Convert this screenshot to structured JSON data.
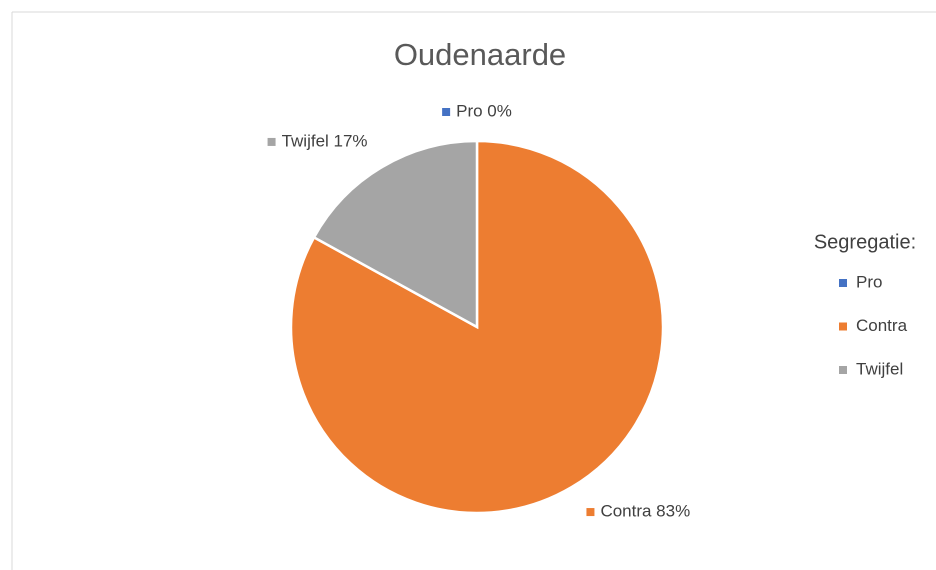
{
  "chart_data": {
    "type": "pie",
    "title": "Oudenaarde",
    "categories": [
      "Pro",
      "Contra",
      "Twijfel"
    ],
    "values": [
      0,
      83,
      17
    ],
    "value_labels": [
      "Pro 0%",
      "Contra 83%",
      "Twijfel 17%"
    ],
    "colors": [
      "#4472c4",
      "#ed7d31",
      "#a5a5a5"
    ],
    "legend_title": "Segregatie:",
    "legend": "right"
  }
}
